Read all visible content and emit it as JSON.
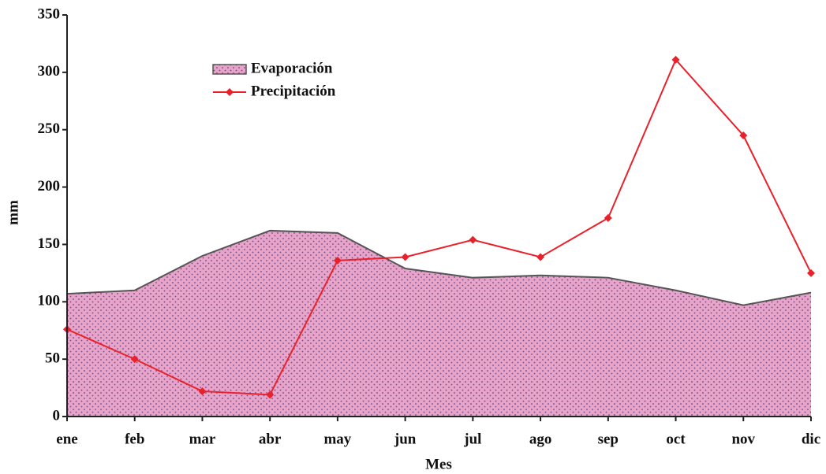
{
  "chart_data": {
    "type": "area-line",
    "x_label": "Mes",
    "y_label": "mm",
    "categories": [
      "ene",
      "feb",
      "mar",
      "abr",
      "may",
      "jun",
      "jul",
      "ago",
      "sep",
      "oct",
      "nov",
      "dic"
    ],
    "series": [
      {
        "name": "Evaporación",
        "type": "area",
        "color": "#e8a3c9",
        "values": [
          107,
          110,
          140,
          162,
          160,
          129,
          121,
          123,
          121,
          110,
          97,
          108
        ]
      },
      {
        "name": "Precipitación",
        "type": "line",
        "color": "#e8212a",
        "values": [
          76,
          50,
          22,
          19,
          136,
          139,
          154,
          139,
          173,
          311,
          245,
          125
        ]
      }
    ],
    "ylim": [
      0,
      350
    ],
    "yticks": [
      0,
      50,
      100,
      150,
      200,
      250,
      300,
      350
    ],
    "grid": false,
    "legend": "top-left"
  }
}
